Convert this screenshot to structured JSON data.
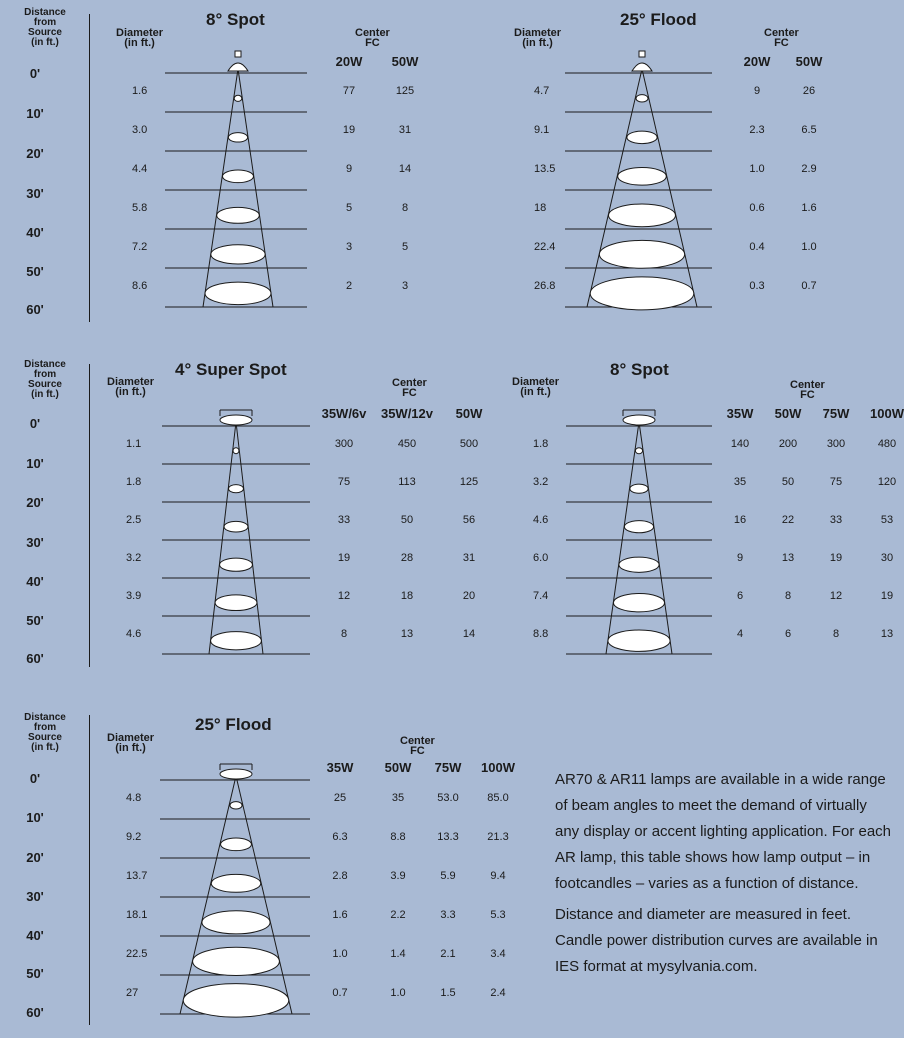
{
  "labels": {
    "distance_header": [
      "Distance",
      "from",
      "Source",
      "(in ft.)"
    ],
    "diameter_header": [
      "Diameter",
      "(in ft.)"
    ],
    "center_header": [
      "Center",
      "FC"
    ]
  },
  "distances": [
    "0'",
    "10'",
    "20'",
    "30'",
    "40'",
    "50'",
    "60'"
  ],
  "blocks": [
    {
      "title": "8° Spot",
      "diameters": [
        "1.6",
        "3.0",
        "4.4",
        "5.8",
        "7.2",
        "8.6"
      ],
      "columns": [
        "20W",
        "50W"
      ],
      "rows": [
        [
          "77",
          "125"
        ],
        [
          "19",
          "31"
        ],
        [
          "9",
          "14"
        ],
        [
          "5",
          "8"
        ],
        [
          "3",
          "5"
        ],
        [
          "2",
          "3"
        ]
      ]
    },
    {
      "title": "25° Flood",
      "diameters": [
        "4.7",
        "9.1",
        "13.5",
        "18",
        "22.4",
        "26.8"
      ],
      "columns": [
        "20W",
        "50W"
      ],
      "rows": [
        [
          "9",
          "26"
        ],
        [
          "2.3",
          "6.5"
        ],
        [
          "1.0",
          "2.9"
        ],
        [
          "0.6",
          "1.6"
        ],
        [
          "0.4",
          "1.0"
        ],
        [
          "0.3",
          "0.7"
        ]
      ]
    },
    {
      "title": "4° Super Spot",
      "diameters": [
        "1.1",
        "1.8",
        "2.5",
        "3.2",
        "3.9",
        "4.6"
      ],
      "columns": [
        "35W/6v",
        "35W/12v",
        "50W"
      ],
      "rows": [
        [
          "300",
          "450",
          "500"
        ],
        [
          "75",
          "113",
          "125"
        ],
        [
          "33",
          "50",
          "56"
        ],
        [
          "19",
          "28",
          "31"
        ],
        [
          "12",
          "18",
          "20"
        ],
        [
          "8",
          "13",
          "14"
        ]
      ]
    },
    {
      "title": "8° Spot",
      "diameters": [
        "1.8",
        "3.2",
        "4.6",
        "6.0",
        "7.4",
        "8.8"
      ],
      "columns": [
        "35W",
        "50W",
        "75W",
        "100W"
      ],
      "rows": [
        [
          "140",
          "200",
          "300",
          "480"
        ],
        [
          "35",
          "50",
          "75",
          "120"
        ],
        [
          "16",
          "22",
          "33",
          "53"
        ],
        [
          "9",
          "13",
          "19",
          "30"
        ],
        [
          "6",
          "8",
          "12",
          "19"
        ],
        [
          "4",
          "6",
          "8",
          "13"
        ]
      ]
    },
    {
      "title": "25° Flood",
      "diameters": [
        "4.8",
        "9.2",
        "13.7",
        "18.1",
        "22.5",
        "27"
      ],
      "columns": [
        "35W",
        "50W",
        "75W",
        "100W"
      ],
      "rows": [
        [
          "25",
          "35",
          "53.0",
          "85.0"
        ],
        [
          "6.3",
          "8.8",
          "13.3",
          "21.3"
        ],
        [
          "2.8",
          "3.9",
          "5.9",
          "9.4"
        ],
        [
          "1.6",
          "2.2",
          "3.3",
          "5.3"
        ],
        [
          "1.0",
          "1.4",
          "2.1",
          "3.4"
        ],
        [
          "0.7",
          "1.0",
          "1.5",
          "2.4"
        ]
      ]
    }
  ],
  "description": [
    "AR70 & AR11 lamps are available in a wide range",
    "of beam angles to meet the demand of virtually",
    "any display or accent lighting application. For each",
    "AR lamp, this table shows how lamp output – in",
    "footcandles – varies as a function of distance."
  ],
  "description2": [
    "Distance and diameter are measured in feet.",
    "Candle power distribution curves are available in",
    "IES format at mysylvania.com."
  ],
  "colors": {
    "background": "#a9bad4",
    "ink": "#1b1b1b",
    "beam_fill": "#ffffff"
  }
}
